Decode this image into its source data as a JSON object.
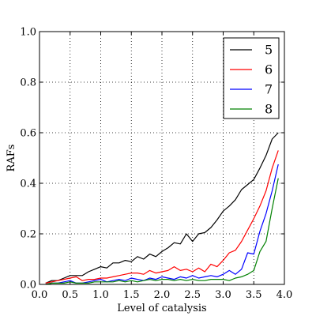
{
  "chart_data": {
    "type": "line",
    "xlabel": "Level of catalysis",
    "ylabel": "RAFs",
    "xlim": [
      0.0,
      4.0
    ],
    "ylim": [
      0.0,
      1.0
    ],
    "xticks": [
      "0.0",
      "0.5",
      "1.0",
      "1.5",
      "2.0",
      "2.5",
      "3.0",
      "3.5",
      "4.0"
    ],
    "yticks": [
      "0.0",
      "0.2",
      "0.4",
      "0.6",
      "0.8",
      "1.0"
    ],
    "grid": true,
    "legend_position": "top-right",
    "x": [
      0.1,
      0.2,
      0.3,
      0.4,
      0.5,
      0.6,
      0.7,
      0.8,
      0.9,
      1.0,
      1.1,
      1.2,
      1.3,
      1.4,
      1.5,
      1.6,
      1.7,
      1.8,
      1.9,
      2.0,
      2.1,
      2.2,
      2.3,
      2.4,
      2.5,
      2.6,
      2.7,
      2.8,
      2.9,
      3.0,
      3.1,
      3.2,
      3.3,
      3.4,
      3.5,
      3.6,
      3.7,
      3.8,
      3.9
    ],
    "series": [
      {
        "name": "5",
        "color": "#000000",
        "values": [
          0.005,
          0.015,
          0.015,
          0.025,
          0.035,
          0.035,
          0.035,
          0.05,
          0.06,
          0.07,
          0.065,
          0.085,
          0.085,
          0.095,
          0.09,
          0.11,
          0.1,
          0.12,
          0.11,
          0.13,
          0.145,
          0.165,
          0.16,
          0.2,
          0.17,
          0.2,
          0.205,
          0.225,
          0.255,
          0.29,
          0.31,
          0.335,
          0.375,
          0.395,
          0.415,
          0.46,
          0.51,
          0.575,
          0.6
        ]
      },
      {
        "name": "6",
        "color": "#ff0000",
        "values": [
          0.005,
          0.01,
          0.015,
          0.02,
          0.025,
          0.03,
          0.015,
          0.02,
          0.02,
          0.025,
          0.025,
          0.03,
          0.035,
          0.04,
          0.045,
          0.045,
          0.04,
          0.055,
          0.045,
          0.05,
          0.055,
          0.07,
          0.055,
          0.06,
          0.05,
          0.065,
          0.05,
          0.08,
          0.07,
          0.095,
          0.125,
          0.135,
          0.17,
          0.215,
          0.26,
          0.31,
          0.37,
          0.46,
          0.53
        ]
      },
      {
        "name": "7",
        "color": "#0000ff",
        "values": [
          0.0,
          0.005,
          0.005,
          0.01,
          0.015,
          0.005,
          0.005,
          0.01,
          0.015,
          0.02,
          0.01,
          0.015,
          0.02,
          0.015,
          0.025,
          0.02,
          0.015,
          0.025,
          0.02,
          0.03,
          0.025,
          0.02,
          0.03,
          0.025,
          0.035,
          0.025,
          0.03,
          0.035,
          0.03,
          0.04,
          0.055,
          0.04,
          0.06,
          0.125,
          0.12,
          0.21,
          0.28,
          0.37,
          0.475
        ]
      },
      {
        "name": "8",
        "color": "#008000",
        "values": [
          0.0,
          0.005,
          0.005,
          0.005,
          0.01,
          0.005,
          0.005,
          0.005,
          0.01,
          0.01,
          0.01,
          0.01,
          0.015,
          0.01,
          0.015,
          0.01,
          0.015,
          0.02,
          0.015,
          0.02,
          0.02,
          0.015,
          0.02,
          0.015,
          0.02,
          0.015,
          0.015,
          0.02,
          0.02,
          0.02,
          0.015,
          0.025,
          0.03,
          0.04,
          0.055,
          0.13,
          0.17,
          0.3,
          0.42
        ]
      }
    ]
  }
}
